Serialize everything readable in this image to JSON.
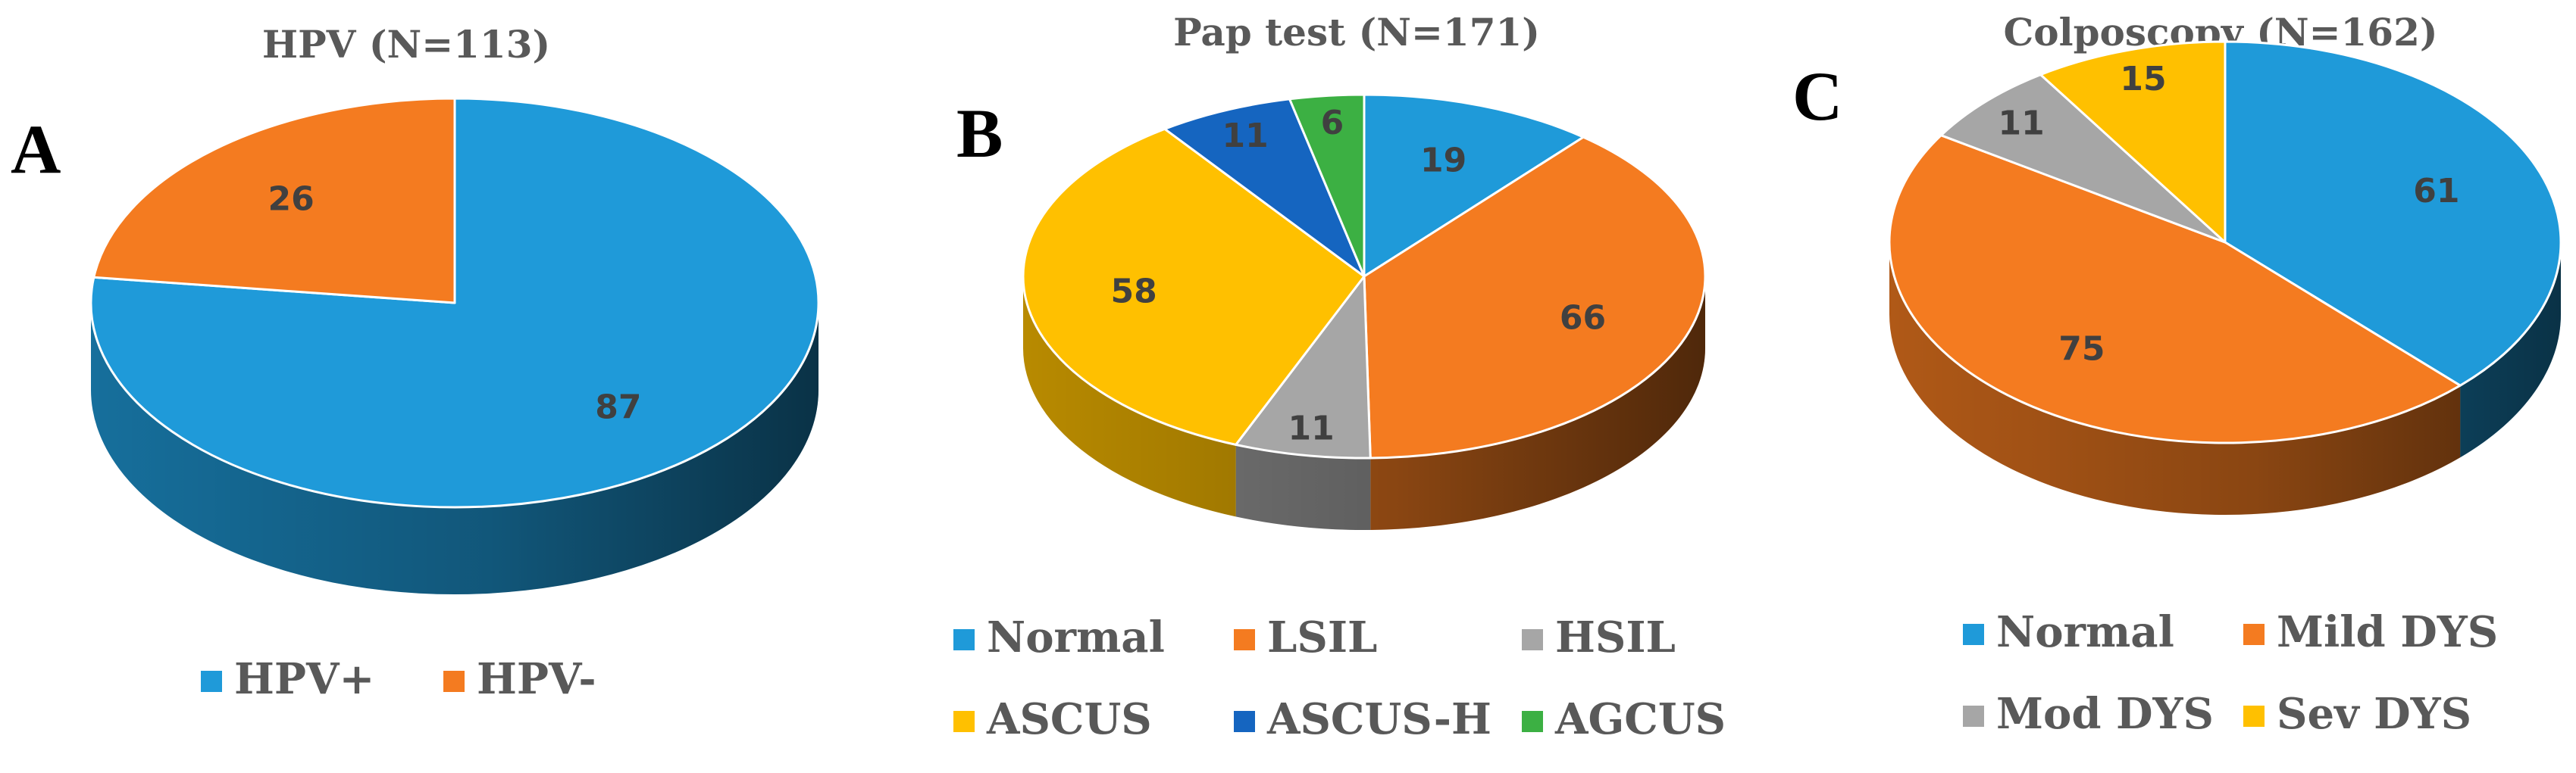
{
  "colors": {
    "blue": "#1f9ad9",
    "orange": "#f47b20",
    "gray": "#a6a6a6",
    "yellow": "#ffc000",
    "darkblue": "#1565c0",
    "green": "#3cb043"
  },
  "chart_data": [
    {
      "type": "pie",
      "panel": "A",
      "title": "HPV (N=113)",
      "categories": [
        "HPV+",
        "HPV-"
      ],
      "values": [
        87,
        26
      ],
      "colors": [
        "#1f9ad9",
        "#f47b20"
      ],
      "legend_position": "bottom"
    },
    {
      "type": "pie",
      "panel": "B",
      "title": "Pap test (N=171)",
      "categories": [
        "Normal",
        "LSIL",
        "HSIL",
        "ASCUS",
        "ASCUS-H",
        "AGCUS"
      ],
      "values": [
        19,
        66,
        11,
        58,
        11,
        6
      ],
      "colors": [
        "#1f9ad9",
        "#f47b20",
        "#a6a6a6",
        "#ffc000",
        "#1565c0",
        "#3cb043"
      ],
      "legend_position": "bottom"
    },
    {
      "type": "pie",
      "panel": "C",
      "title": "Colposcopy (N=162)",
      "categories": [
        "Normal",
        "Mild DYS",
        "Mod DYS",
        "Sev DYS"
      ],
      "values": [
        61,
        75,
        11,
        15
      ],
      "colors": [
        "#1f9ad9",
        "#f47b20",
        "#a6a6a6",
        "#ffc000"
      ],
      "legend_position": "bottom"
    }
  ]
}
